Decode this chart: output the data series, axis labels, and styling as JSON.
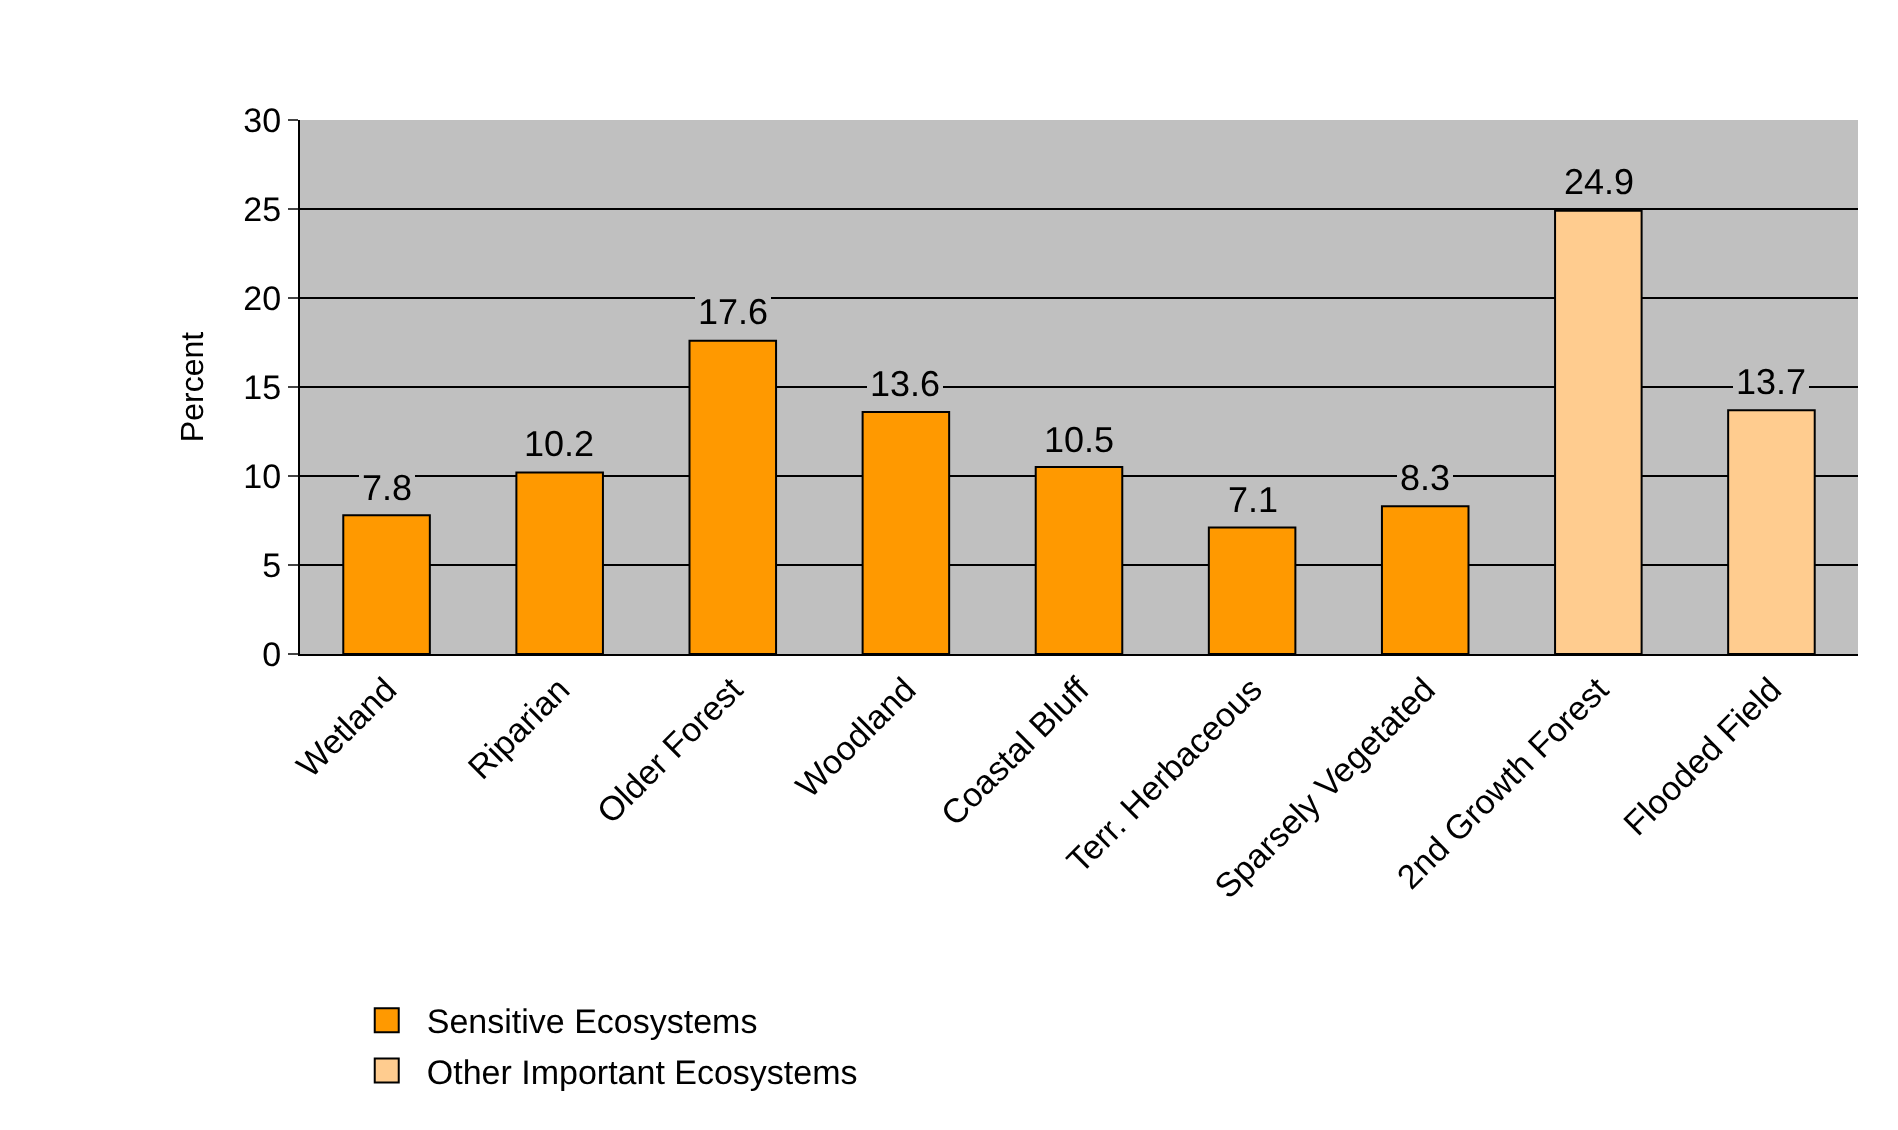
{
  "chart_data": {
    "type": "bar",
    "ylabel": "Percent",
    "categories": [
      "Wetland",
      "Riparian",
      "Older Forest",
      "Woodland",
      "Coastal Bluff",
      "Terr. Herbaceous",
      "Sparsely Vegetated",
      "2nd Growth Forest",
      "Flooded Field"
    ],
    "series": [
      {
        "name": "Sensitive Ecosystems",
        "color": "#ff9900",
        "values": [
          7.8,
          10.2,
          17.6,
          13.6,
          10.5,
          7.1,
          8.3,
          null,
          null
        ]
      },
      {
        "name": "Other Important Ecosystems",
        "color": "#ffcc8f",
        "values": [
          null,
          null,
          null,
          null,
          null,
          null,
          null,
          24.9,
          13.7
        ]
      }
    ],
    "ylim": [
      0,
      30
    ],
    "yticks": [
      0,
      5,
      10,
      15,
      20,
      25,
      30
    ],
    "grid": "y",
    "data_labels": true,
    "legend": "bottom left"
  }
}
